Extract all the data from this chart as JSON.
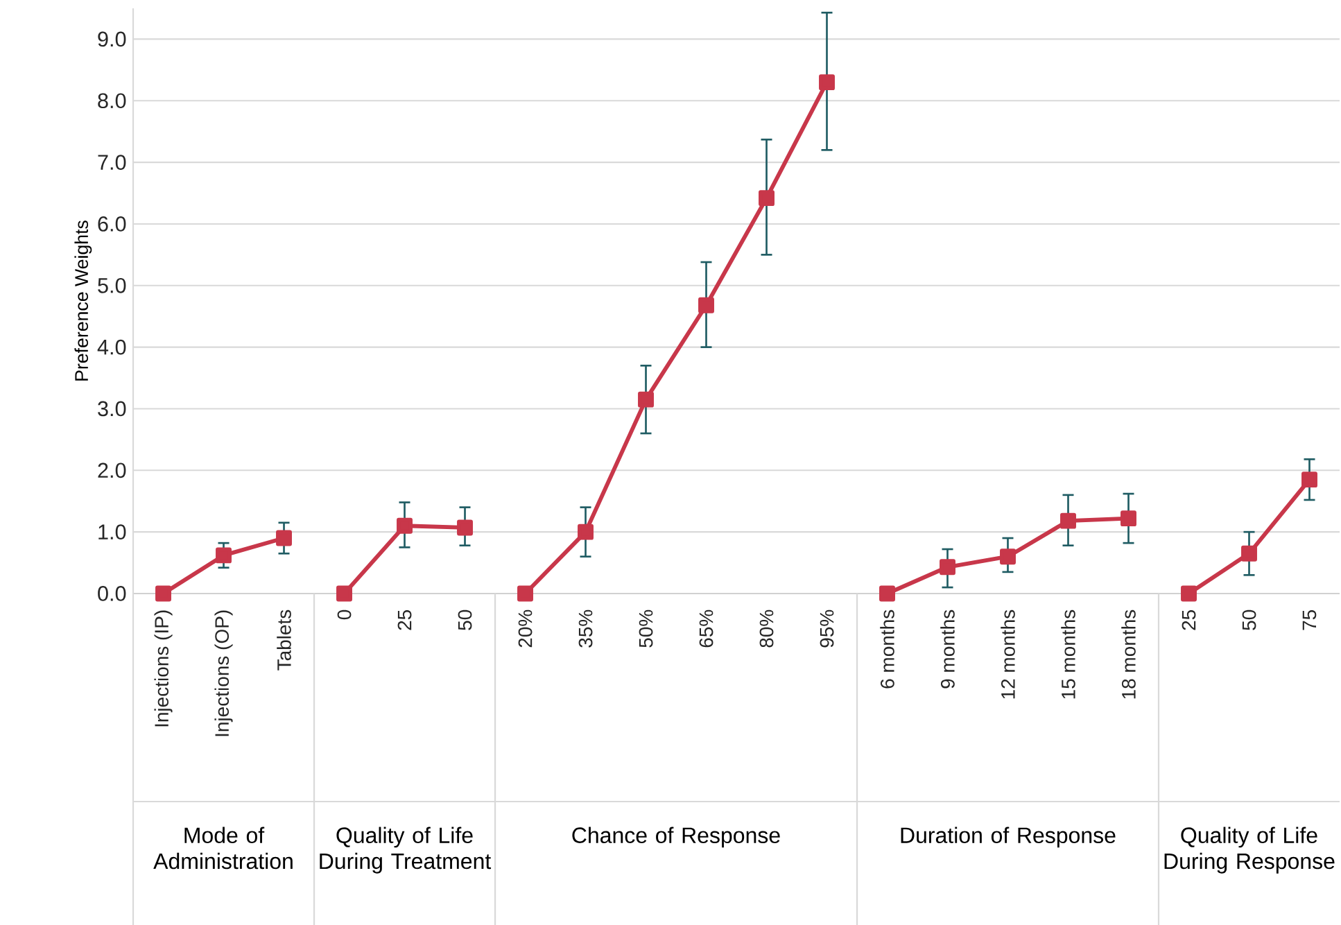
{
  "chart_data": {
    "type": "line",
    "ylabel": "Preference Weights",
    "categories": [
      "Injections (IP)",
      "Injections (OP)",
      "Tablets",
      "0",
      "25",
      "50",
      "20%",
      "35%",
      "50%",
      "65%",
      "80%",
      "95%",
      "6 months",
      "9 months",
      "12 months",
      "15 months",
      "18 months",
      "25",
      "50",
      "75"
    ],
    "series": [
      {
        "color": "#c8374a",
        "values": [
          0,
          0.62,
          0.9,
          null,
          null,
          null,
          null,
          null,
          null,
          null,
          null,
          null,
          null,
          null,
          null,
          null,
          null,
          null,
          null,
          null
        ],
        "errors": [
          null,
          [
            0.42,
            0.82
          ],
          [
            0.65,
            1.15
          ],
          null,
          null,
          null,
          null,
          null,
          null,
          null,
          null,
          null,
          null,
          null,
          null,
          null,
          null,
          null,
          null,
          null
        ]
      },
      {
        "color": "#c8374a",
        "values": [
          null,
          null,
          null,
          0,
          1.1,
          1.07,
          null,
          null,
          null,
          null,
          null,
          null,
          null,
          null,
          null,
          null,
          null,
          null,
          null,
          null
        ],
        "errors": [
          null,
          null,
          null,
          null,
          [
            0.75,
            1.48
          ],
          [
            0.78,
            1.4
          ],
          null,
          null,
          null,
          null,
          null,
          null,
          null,
          null,
          null,
          null,
          null,
          null,
          null,
          null
        ]
      },
      {
        "color": "#c8374a",
        "values": [
          null,
          null,
          null,
          null,
          null,
          null,
          0,
          1.0,
          3.15,
          4.68,
          6.42,
          8.3,
          null,
          null,
          null,
          null,
          null,
          null,
          null,
          null
        ],
        "errors": [
          null,
          null,
          null,
          null,
          null,
          null,
          null,
          [
            0.6,
            1.4
          ],
          [
            2.6,
            3.7
          ],
          [
            4.0,
            5.38
          ],
          [
            5.5,
            7.37
          ],
          [
            7.2,
            9.43
          ],
          null,
          null,
          null,
          null,
          null,
          null,
          null,
          null
        ]
      },
      {
        "color": "#c8374a",
        "values": [
          null,
          null,
          null,
          null,
          null,
          null,
          null,
          null,
          null,
          null,
          null,
          null,
          0,
          0.43,
          0.6,
          1.18,
          1.22,
          null,
          null,
          null
        ],
        "errors": [
          null,
          null,
          null,
          null,
          null,
          null,
          null,
          null,
          null,
          null,
          null,
          null,
          null,
          [
            0.1,
            0.72
          ],
          [
            0.35,
            0.9
          ],
          [
            0.78,
            1.6
          ],
          [
            0.82,
            1.62
          ],
          null,
          null,
          null
        ]
      },
      {
        "color": "#c8374a",
        "values": [
          null,
          null,
          null,
          null,
          null,
          null,
          null,
          null,
          null,
          null,
          null,
          null,
          null,
          null,
          null,
          null,
          null,
          0,
          0.65,
          1.85
        ],
        "errors": [
          null,
          null,
          null,
          null,
          null,
          null,
          null,
          null,
          null,
          null,
          null,
          null,
          null,
          null,
          null,
          null,
          null,
          null,
          [
            0.3,
            1.0
          ],
          [
            1.52,
            2.18
          ]
        ]
      }
    ],
    "annotations": [
      "Mode of Administration",
      "Quality of Life During Treatment",
      "Chance of Response",
      "Duration of Response",
      "Quality of Life During Response"
    ],
    "ylim": [
      0,
      9.5
    ],
    "yticks": [
      {
        "value": 0,
        "label": "0.0"
      },
      {
        "value": 1,
        "label": "1.0"
      },
      {
        "value": 2,
        "label": "2.0"
      },
      {
        "value": 3,
        "label": "3.0"
      },
      {
        "value": 4,
        "label": "4.0"
      },
      {
        "value": 5,
        "label": "5.0"
      },
      {
        "value": 6,
        "label": "6.0"
      },
      {
        "value": 7,
        "label": "7.0"
      },
      {
        "value": 8,
        "label": "8.0"
      },
      {
        "value": 9,
        "label": "9.0"
      }
    ],
    "grid": "y",
    "marker": "square",
    "line_style": "solid"
  }
}
